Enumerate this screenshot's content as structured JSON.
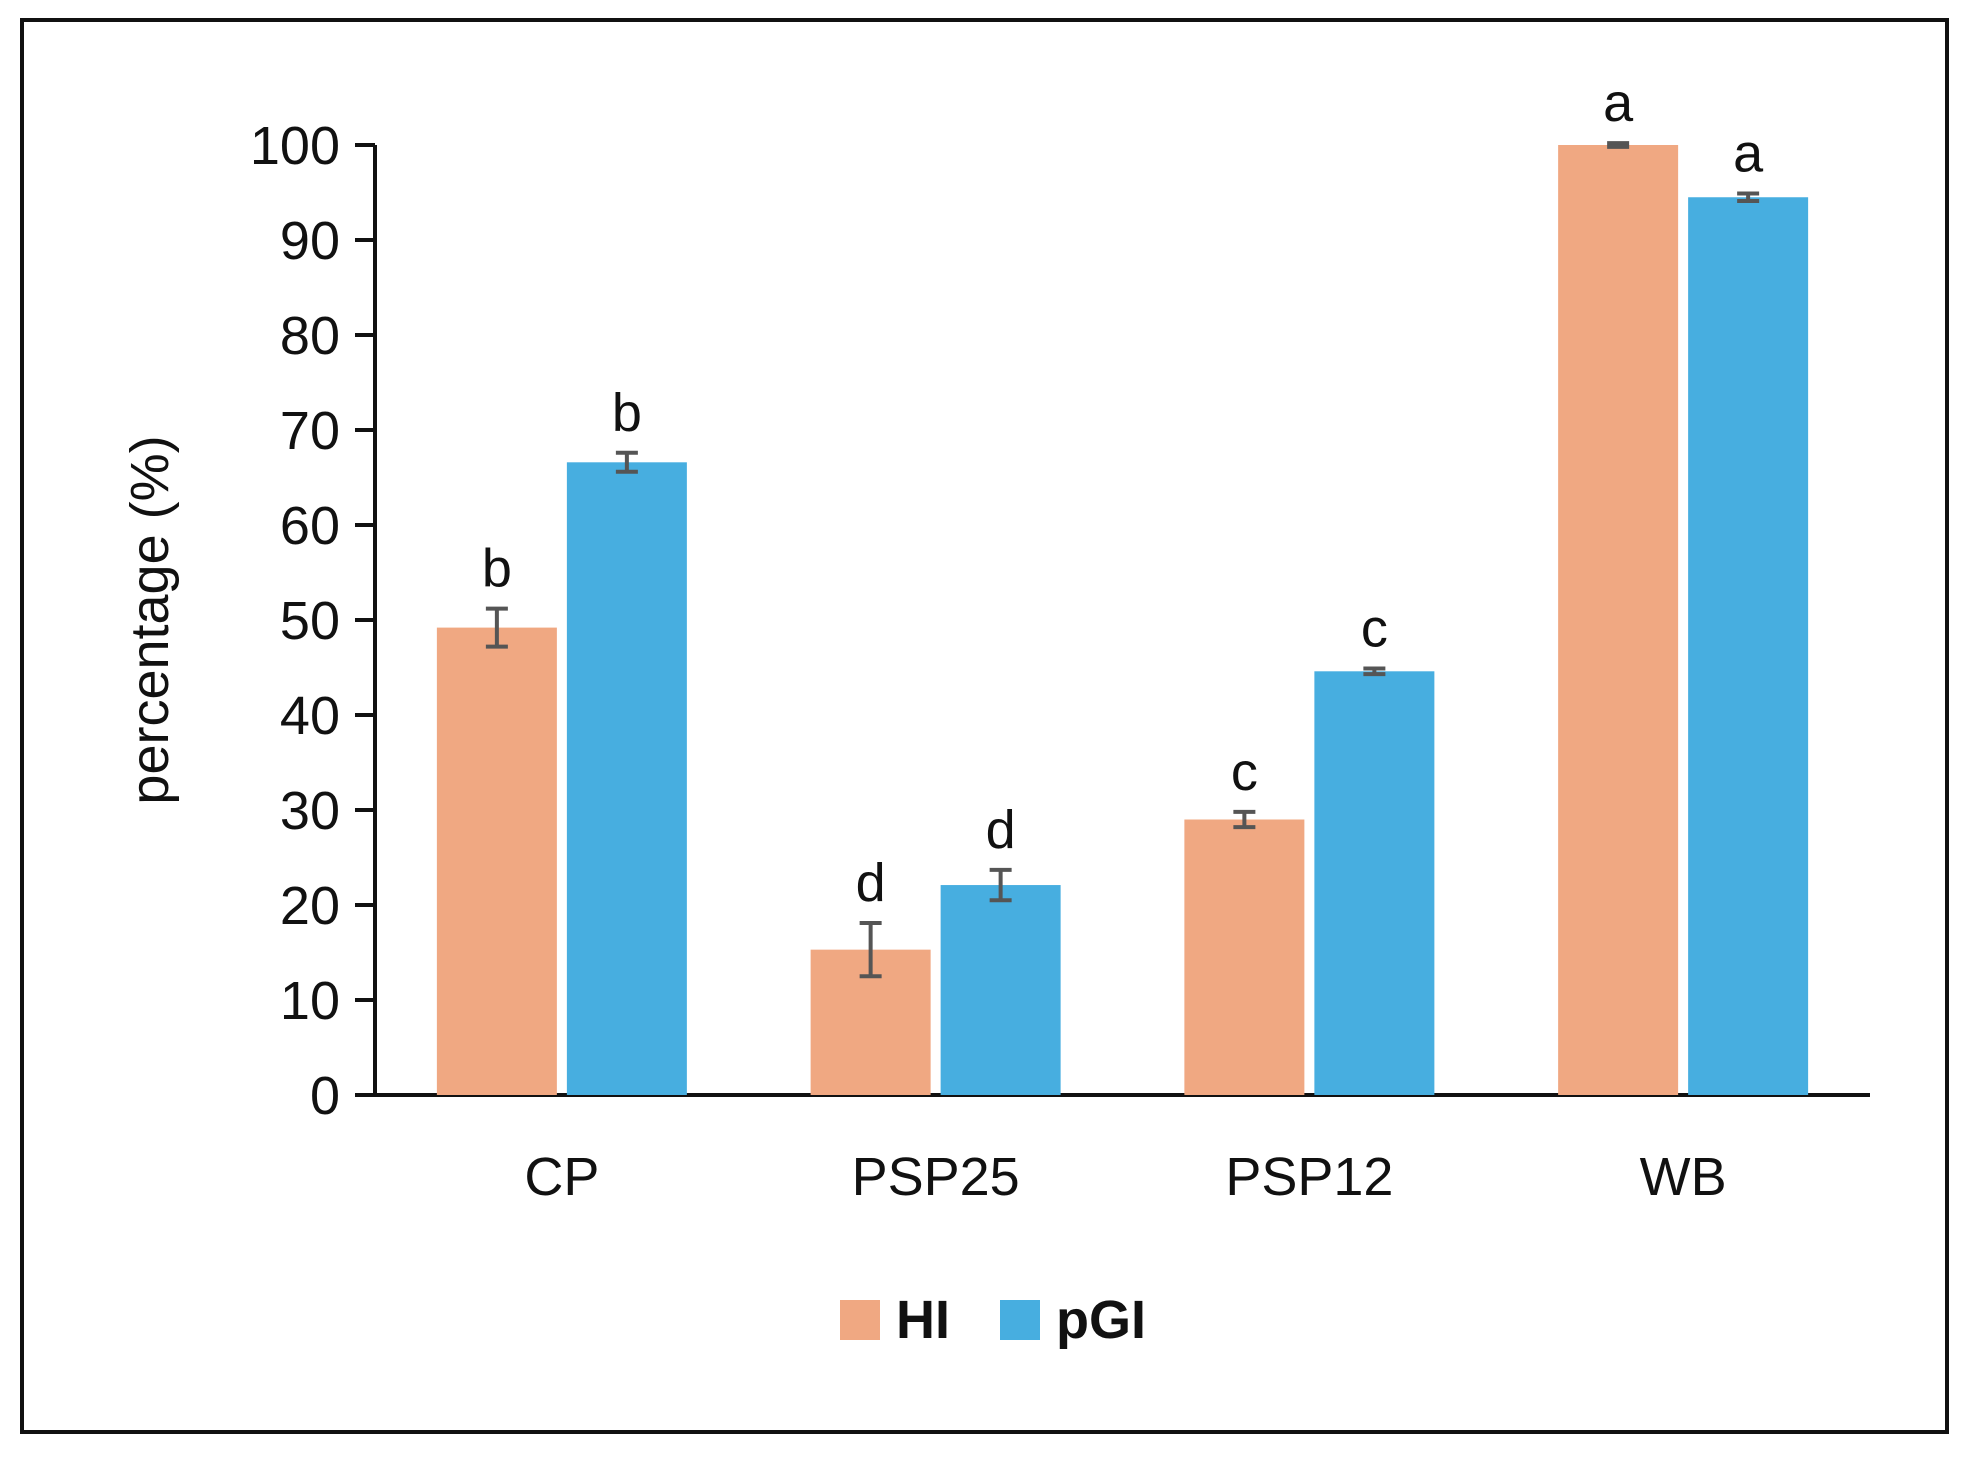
{
  "chart_data": {
    "type": "bar",
    "title": "",
    "xlabel": "",
    "ylabel": "percentage (%)",
    "ylim": [
      0,
      100
    ],
    "yticks": [
      0,
      10,
      20,
      30,
      40,
      50,
      60,
      70,
      80,
      90,
      100
    ],
    "grid": false,
    "legend_position": "bottom-center",
    "categories": [
      "CP",
      "PSP25",
      "PSP12",
      "WB"
    ],
    "series": [
      {
        "name": "HI",
        "color": "#F0A882",
        "values": [
          49.2,
          15.3,
          29.0,
          100.0
        ],
        "errors": [
          2.0,
          2.8,
          0.8,
          0.2
        ],
        "significance": [
          "b",
          "d",
          "c",
          "a"
        ]
      },
      {
        "name": "pGI",
        "color": "#47AEE0",
        "values": [
          66.6,
          22.1,
          44.6,
          94.5
        ],
        "errors": [
          1.0,
          1.6,
          0.3,
          0.4
        ],
        "significance": [
          "b",
          "d",
          "c",
          "a"
        ]
      }
    ],
    "axis_color": "#111111",
    "error_bar_color": "#555555",
    "frame_color": "#111111"
  }
}
